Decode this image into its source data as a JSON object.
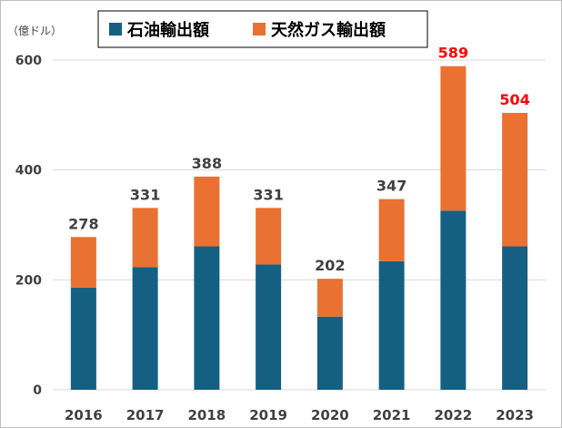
{
  "chart_data": {
    "type": "bar",
    "stacked": true,
    "title": "",
    "unit_label": "（億ドル）",
    "categories": [
      "2016",
      "2017",
      "2018",
      "2019",
      "2020",
      "2021",
      "2022",
      "2023"
    ],
    "series": [
      {
        "name": "石油輸出額",
        "color": "#156082",
        "values": [
          186,
          223,
          261,
          228,
          133,
          234,
          326,
          261
        ]
      },
      {
        "name": "天然ガス輸出額",
        "color": "#e97132",
        "values": [
          92,
          108,
          127,
          103,
          69,
          113,
          263,
          243
        ]
      }
    ],
    "totals": [
      "278",
      "331",
      "388",
      "331",
      "202",
      "347",
      "589",
      "504"
    ],
    "total_colors": [
      "#404040",
      "#404040",
      "#404040",
      "#404040",
      "#404040",
      "#404040",
      "#ff0000",
      "#ff0000"
    ],
    "yticks": [
      "0",
      "200",
      "400",
      "600"
    ],
    "ylim": [
      0,
      600
    ],
    "grid": true,
    "legend_position": "top"
  }
}
